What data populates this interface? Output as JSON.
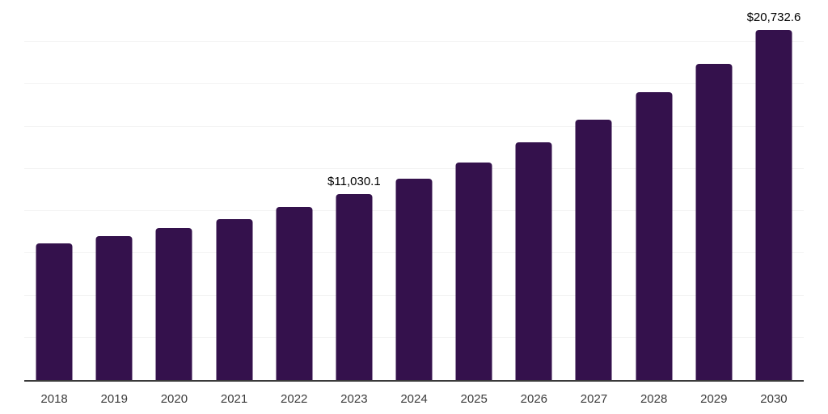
{
  "chart_data": {
    "type": "bar",
    "categories": [
      "2018",
      "2019",
      "2020",
      "2021",
      "2022",
      "2023",
      "2024",
      "2025",
      "2026",
      "2027",
      "2028",
      "2029",
      "2030"
    ],
    "values": [
      8080,
      8510,
      8990,
      9550,
      10260,
      11030.1,
      11900,
      12890,
      14080,
      15430,
      17060,
      18730,
      20732.6
    ],
    "bar_labels": [
      "",
      "",
      "",
      "",
      "",
      "$11,030.1",
      "",
      "",
      "",
      "",
      "",
      "",
      "$20,732.6"
    ],
    "title": "",
    "xlabel": "",
    "ylabel": "",
    "ylim": [
      0,
      22500
    ],
    "gridline_step": 2500,
    "grid": true,
    "legend": false,
    "colors": {
      "bar": "#34114C",
      "grid": "#f3f3f3",
      "axis": "#3a3a3a",
      "tick_label": "#3b3b3b",
      "data_label": "#000000",
      "background": "#ffffff"
    }
  }
}
